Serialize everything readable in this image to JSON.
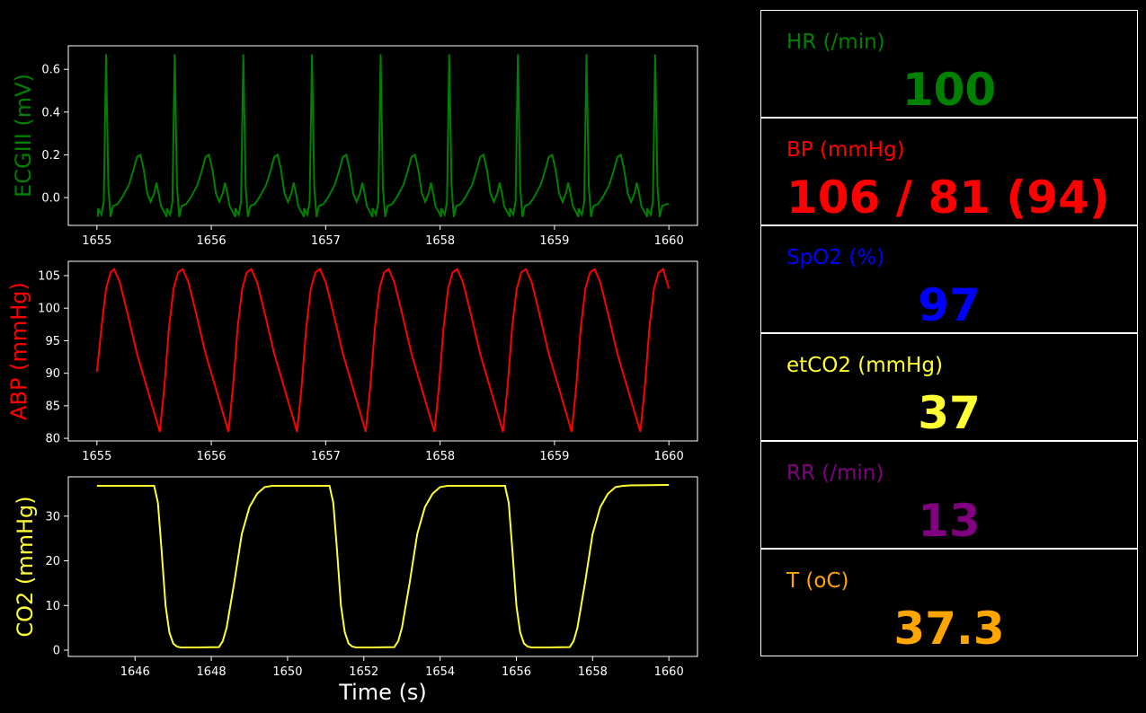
{
  "chart_data": [
    {
      "type": "line",
      "ylabel": "ECGIII (mV)",
      "color": "#008000",
      "xlim": [
        1654.75,
        1660.25
      ],
      "ylim": [
        -0.13,
        0.71
      ],
      "xticks": [
        "1655",
        "1656",
        "1657",
        "1658",
        "1659",
        "1660"
      ],
      "yticks": [
        "0.0",
        "0.2",
        "0.4",
        "0.6"
      ],
      "series": [
        {
          "x": [],
          "y": []
        }
      ],
      "beat_template": {
        "rr_seconds": 0.6,
        "first_r_peak": 1655.08,
        "points": [
          [
            -0.07,
            -0.05
          ],
          [
            -0.04,
            -0.08
          ],
          [
            -0.02,
            -0.02
          ],
          [
            0.0,
            0.67
          ],
          [
            0.02,
            0.05
          ],
          [
            0.04,
            -0.09
          ],
          [
            0.06,
            -0.04
          ],
          [
            0.1,
            -0.03
          ],
          [
            0.14,
            0.0
          ],
          [
            0.2,
            0.06
          ],
          [
            0.24,
            0.13
          ],
          [
            0.27,
            0.19
          ],
          [
            0.3,
            0.2
          ],
          [
            0.33,
            0.13
          ],
          [
            0.36,
            0.02
          ],
          [
            0.39,
            -0.02
          ],
          [
            0.42,
            0.02
          ],
          [
            0.44,
            0.07
          ],
          [
            0.46,
            0.02
          ],
          [
            0.48,
            -0.04
          ],
          [
            0.51,
            -0.07
          ],
          [
            0.53,
            -0.09
          ]
        ]
      }
    },
    {
      "type": "line",
      "ylabel": "ABP (mmHg)",
      "color": "#ff0000",
      "xlim": [
        1654.75,
        1660.25
      ],
      "ylim": [
        79.6,
        107.2
      ],
      "xticks": [
        "1655",
        "1656",
        "1657",
        "1658",
        "1659",
        "1660"
      ],
      "yticks": [
        "80",
        "85",
        "90",
        "95",
        "100",
        "105"
      ],
      "series": [
        {
          "x": [
            1655.0,
            1655.04,
            1655.08,
            1655.12,
            1655.15,
            1655.2,
            1655.27,
            1655.35,
            1655.45,
            1655.55,
            1655.59,
            1655.63,
            1655.67,
            1655.71,
            1655.75,
            1655.8,
            1655.87,
            1655.95,
            1656.05,
            1656.15,
            1656.19,
            1656.23,
            1656.27,
            1656.31,
            1656.35,
            1656.4,
            1656.47,
            1656.55,
            1656.65,
            1656.75,
            1656.79,
            1656.83,
            1656.87,
            1656.91,
            1656.95,
            1657.0,
            1657.07,
            1657.15,
            1657.25,
            1657.35,
            1657.39,
            1657.43,
            1657.47,
            1657.51,
            1657.55,
            1657.6,
            1657.67,
            1657.75,
            1657.85,
            1657.95,
            1657.99,
            1658.03,
            1658.07,
            1658.11,
            1658.15,
            1658.2,
            1658.27,
            1658.35,
            1658.45,
            1658.55,
            1658.59,
            1658.63,
            1658.67,
            1658.71,
            1658.75,
            1658.8,
            1658.87,
            1658.95,
            1659.05,
            1659.15,
            1659.19,
            1659.23,
            1659.27,
            1659.31,
            1659.35,
            1659.4,
            1659.47,
            1659.55,
            1659.65,
            1659.75,
            1659.79,
            1659.83,
            1659.87,
            1659.91,
            1659.95,
            1660.0
          ],
          "y": [
            90.2,
            97.0,
            103.0,
            105.5,
            106.0,
            104.0,
            99.0,
            93.0,
            87.0,
            81.0,
            88.0,
            97.0,
            103.0,
            105.5,
            106.0,
            104.0,
            99.0,
            93.0,
            87.0,
            81.0,
            88.0,
            97.0,
            103.0,
            105.5,
            106.0,
            104.0,
            99.0,
            93.0,
            87.0,
            81.0,
            88.0,
            97.0,
            103.0,
            105.5,
            106.0,
            104.0,
            99.0,
            93.0,
            87.0,
            81.0,
            88.0,
            97.0,
            103.0,
            105.5,
            106.0,
            104.0,
            99.0,
            93.0,
            87.0,
            81.0,
            88.0,
            97.0,
            103.0,
            105.5,
            106.0,
            104.0,
            99.0,
            93.0,
            87.0,
            81.0,
            88.0,
            97.0,
            103.0,
            105.5,
            106.0,
            104.0,
            99.0,
            93.0,
            87.0,
            81.0,
            88.0,
            97.0,
            103.0,
            105.5,
            106.0,
            104.0,
            99.0,
            93.0,
            87.0,
            81.0,
            88.0,
            97.0,
            103.0,
            105.5,
            106.0,
            103.0
          ]
        }
      ]
    },
    {
      "type": "line",
      "ylabel": "CO2 (mmHg)",
      "xlabel": "Time (s)",
      "color": "#ffff33",
      "xlim": [
        1644.25,
        1660.75
      ],
      "ylim": [
        -1.4,
        38.8
      ],
      "xticks": [
        "1646",
        "1648",
        "1650",
        "1652",
        "1654",
        "1656",
        "1658",
        "1660"
      ],
      "yticks": [
        "0",
        "10",
        "20",
        "30"
      ],
      "series": [
        {
          "x": [
            1645.0,
            1646.5,
            1646.6,
            1646.7,
            1646.8,
            1646.9,
            1647.0,
            1647.1,
            1647.2,
            1647.4,
            1647.6,
            1648.2,
            1648.3,
            1648.4,
            1648.6,
            1648.8,
            1649.0,
            1649.2,
            1649.4,
            1649.6,
            1649.8,
            1651.1,
            1651.2,
            1651.3,
            1651.4,
            1651.5,
            1651.6,
            1651.7,
            1651.8,
            1652.0,
            1652.2,
            1652.8,
            1652.9,
            1653.0,
            1653.2,
            1653.4,
            1653.6,
            1653.8,
            1654.0,
            1654.2,
            1654.4,
            1655.7,
            1655.8,
            1655.9,
            1656.0,
            1656.1,
            1656.2,
            1656.3,
            1656.4,
            1656.6,
            1656.8,
            1657.4,
            1657.5,
            1657.6,
            1657.8,
            1658.0,
            1658.2,
            1658.4,
            1658.6,
            1658.8,
            1659.0,
            1660.0
          ],
          "y": [
            36.8,
            36.8,
            33.0,
            22.0,
            10.0,
            4.0,
            1.5,
            0.8,
            0.6,
            0.6,
            0.6,
            0.7,
            2.0,
            5.0,
            15.0,
            26.0,
            32.0,
            35.0,
            36.5,
            36.8,
            36.8,
            36.8,
            33.0,
            22.0,
            10.0,
            4.0,
            1.5,
            0.8,
            0.6,
            0.6,
            0.6,
            0.7,
            2.0,
            5.0,
            15.0,
            26.0,
            32.0,
            35.0,
            36.5,
            36.8,
            36.8,
            36.8,
            33.0,
            22.0,
            10.0,
            4.0,
            1.5,
            0.8,
            0.6,
            0.6,
            0.6,
            0.7,
            2.0,
            5.0,
            15.0,
            26.0,
            32.0,
            35.0,
            36.5,
            36.8,
            36.9,
            37.0
          ]
        }
      ]
    }
  ],
  "vitals": [
    {
      "label": "HR (/min)",
      "value": "100",
      "color": "#008000"
    },
    {
      "label": "BP  (mmHg)",
      "value": "106 / 81 (94)",
      "color": "#ff0000"
    },
    {
      "label": "SpO2 (%)",
      "value": "97",
      "color": "#0000ff"
    },
    {
      "label": "etCO2 (mmHg)",
      "value": "37",
      "color": "#ffff33"
    },
    {
      "label": "RR (/min)",
      "value": "13",
      "color": "#800080"
    },
    {
      "label": "T (oC)",
      "value": "37.3",
      "color": "#ffa500"
    }
  ]
}
